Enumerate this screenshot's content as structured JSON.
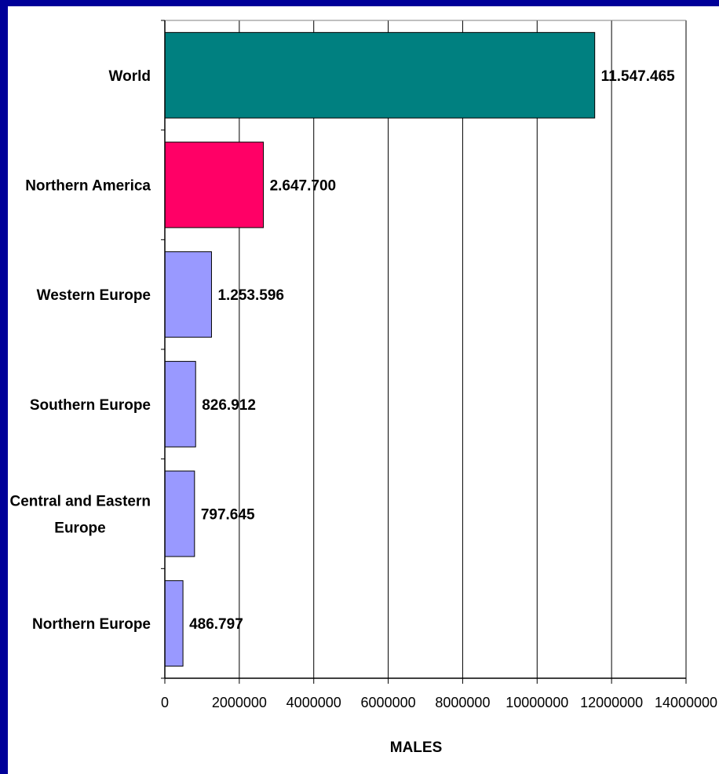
{
  "chart_data": {
    "type": "bar",
    "orientation": "horizontal",
    "categories": [
      "World",
      "Northern America",
      "Western Europe",
      "Southern Europe",
      "Central and Eastern Europe",
      "Northern Europe"
    ],
    "category_labels": [
      [
        "World"
      ],
      [
        "Northern America"
      ],
      [
        "Western Europe"
      ],
      [
        "Southern Europe"
      ],
      [
        "Central and Eastern",
        "Europe"
      ],
      [
        "Northern Europe"
      ]
    ],
    "values": [
      11547465,
      2647700,
      1253596,
      826912,
      797645,
      486797
    ],
    "value_labels": [
      "11.547.465",
      "2.647.700",
      "1.253.596",
      "826.912",
      "797.645",
      "486.797"
    ],
    "bar_colors": [
      "#008080",
      "#ff0066",
      "#9999ff",
      "#9999ff",
      "#9999ff",
      "#9999ff"
    ],
    "xlim": [
      0,
      14000000
    ],
    "x_ticks": [
      0,
      2000000,
      4000000,
      6000000,
      8000000,
      10000000,
      12000000,
      14000000
    ],
    "x_tick_labels": [
      "0",
      "2000000",
      "4000000",
      "6000000",
      "8000000",
      "10000000",
      "12000000",
      "14000000"
    ],
    "xlabel": "MALES",
    "grid": "vertical",
    "legend": "none"
  }
}
